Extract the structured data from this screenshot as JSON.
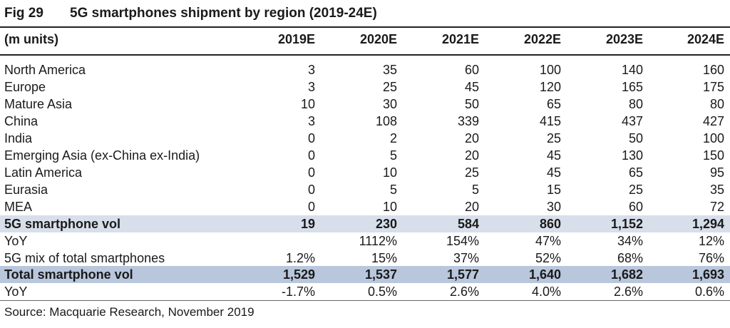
{
  "title": {
    "fig": "Fig 29",
    "text": "5G smartphones shipment by region (2019-24E)"
  },
  "header": {
    "unit": "(m units)",
    "years": [
      "2019E",
      "2020E",
      "2021E",
      "2022E",
      "2023E",
      "2024E"
    ]
  },
  "rows": [
    {
      "label": "North America",
      "values": [
        "3",
        "35",
        "60",
        "100",
        "140",
        "160"
      ]
    },
    {
      "label": "Europe",
      "values": [
        "3",
        "25",
        "45",
        "120",
        "165",
        "175"
      ]
    },
    {
      "label": "Mature Asia",
      "values": [
        "10",
        "30",
        "50",
        "65",
        "80",
        "80"
      ]
    },
    {
      "label": "China",
      "values": [
        "3",
        "108",
        "339",
        "415",
        "437",
        "427"
      ]
    },
    {
      "label": "India",
      "values": [
        "0",
        "2",
        "20",
        "25",
        "50",
        "100"
      ]
    },
    {
      "label": "Emerging Asia (ex-China ex-India)",
      "values": [
        "0",
        "5",
        "20",
        "45",
        "130",
        "150"
      ]
    },
    {
      "label": "Latin America",
      "values": [
        "0",
        "10",
        "25",
        "45",
        "65",
        "95"
      ]
    },
    {
      "label": "Eurasia",
      "values": [
        "0",
        "5",
        "5",
        "15",
        "25",
        "35"
      ]
    },
    {
      "label": "MEA",
      "values": [
        "0",
        "10",
        "20",
        "30",
        "60",
        "72"
      ]
    },
    {
      "label": "5G smartphone vol",
      "values": [
        "19",
        "230",
        "584",
        "860",
        "1,152",
        "1,294"
      ]
    },
    {
      "label": "YoY",
      "values": [
        "",
        "1112%",
        "154%",
        "47%",
        "34%",
        "12%"
      ]
    },
    {
      "label": "5G mix of total smartphones",
      "values": [
        "1.2%",
        "15%",
        "37%",
        "52%",
        "68%",
        "76%"
      ]
    },
    {
      "label": "Total smartphone vol",
      "values": [
        "1,529",
        "1,537",
        "1,577",
        "1,640",
        "1,682",
        "1,693"
      ]
    },
    {
      "label": "YoY",
      "values": [
        "-1.7%",
        "0.5%",
        "2.6%",
        "4.0%",
        "2.6%",
        "0.6%"
      ]
    }
  ],
  "source": "Source: Macquarie Research, November 2019",
  "colors": {
    "highlight": "#d8dfeb",
    "highlight_dark": "#b9c7dd"
  }
}
